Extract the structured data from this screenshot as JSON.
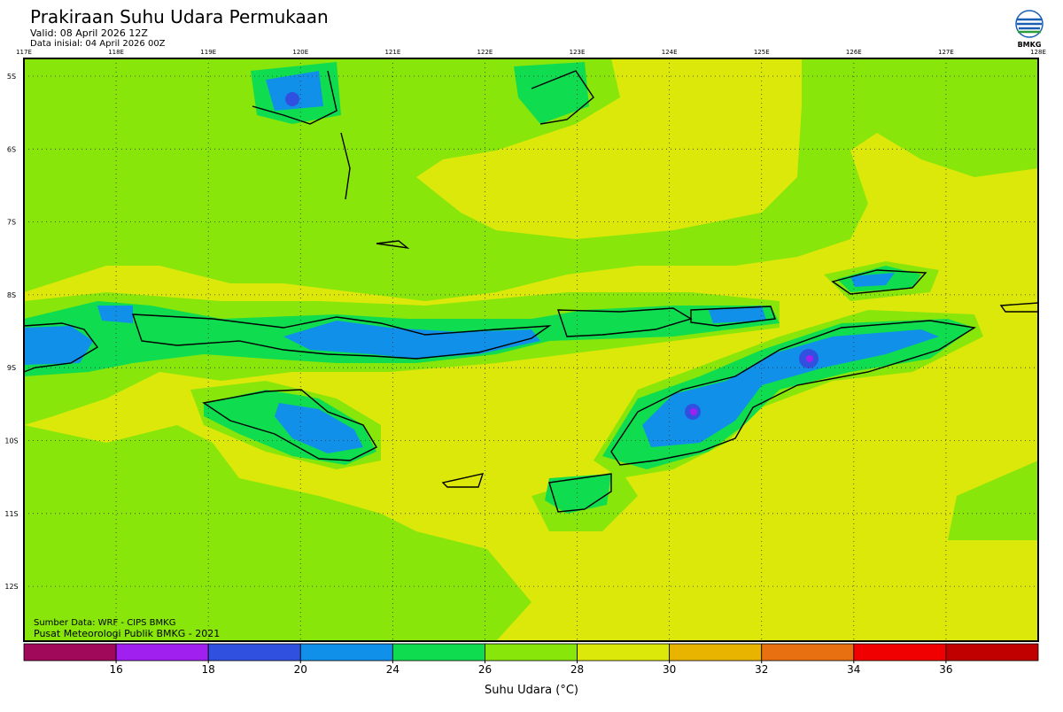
{
  "header": {
    "title": "Prakiraan Suhu Udara Permukaan",
    "valid": "Valid: 08 April 2026 12Z",
    "init": "Data inisial: 04 April 2026 00Z"
  },
  "logo": {
    "label": "BMKG"
  },
  "map": {
    "lon_labels": [
      "117E",
      "118E",
      "119E",
      "120E",
      "121E",
      "122E",
      "123E",
      "124E",
      "125E",
      "126E",
      "127E",
      "128E"
    ],
    "lat_labels": [
      "5S",
      "6S",
      "7S",
      "8S",
      "9S",
      "10S",
      "11S",
      "12S"
    ],
    "credits": [
      "Sumber Data: WRF - CIPS BMKG",
      "Pusat Meteorologi Publik BMKG - 2021"
    ]
  },
  "colorbar": {
    "colors": [
      "#a0085a",
      "#a020f0",
      "#3050e0",
      "#1090e8",
      "#10dc50",
      "#88e60a",
      "#dce80a",
      "#e8b400",
      "#e87010",
      "#f00000",
      "#c00000"
    ],
    "boundaries": [
      16,
      18,
      20,
      24,
      26,
      28,
      30,
      32,
      34,
      36
    ],
    "label": "Suhu Udara (°C)"
  }
}
